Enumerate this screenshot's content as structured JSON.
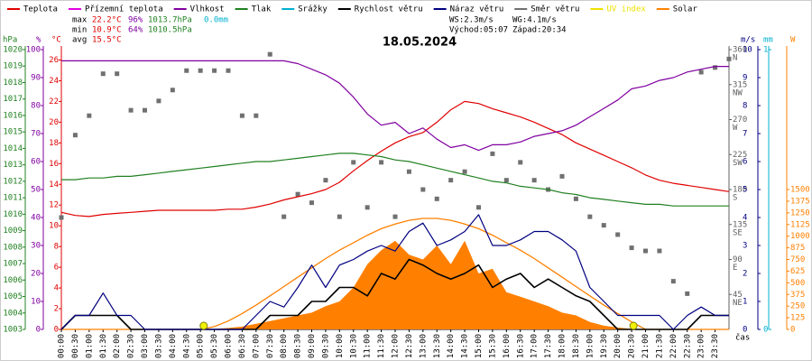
{
  "chart_data": {
    "type": "line",
    "title": "18.05.2024",
    "x_label": "čas",
    "xlim": [
      0,
      24
    ],
    "xticks": [
      {
        "value": 0,
        "label": "00:00"
      },
      {
        "value": 0.5,
        "label": "00:30"
      },
      {
        "value": 1,
        "label": "01:00"
      },
      {
        "value": 1.5,
        "label": "01:30"
      },
      {
        "value": 2,
        "label": "02:00"
      },
      {
        "value": 2.5,
        "label": "02:30"
      },
      {
        "value": 3,
        "label": "03:00"
      },
      {
        "value": 3.5,
        "label": "03:30"
      },
      {
        "value": 4,
        "label": "04:00"
      },
      {
        "value": 4.5,
        "label": "04:30"
      },
      {
        "value": 5,
        "label": "05:00"
      },
      {
        "value": 5.5,
        "label": "05:30"
      },
      {
        "value": 6,
        "label": "06:00"
      },
      {
        "value": 6.5,
        "label": "06:30"
      },
      {
        "value": 7,
        "label": "07:00"
      },
      {
        "value": 7.5,
        "label": "07:30"
      },
      {
        "value": 8,
        "label": "08:00"
      },
      {
        "value": 8.5,
        "label": "08:30"
      },
      {
        "value": 9,
        "label": "09:00"
      },
      {
        "value": 9.5,
        "label": "09:30"
      },
      {
        "value": 10,
        "label": "10:00"
      },
      {
        "value": 10.5,
        "label": "10:30"
      },
      {
        "value": 11,
        "label": "11:00"
      },
      {
        "value": 11.5,
        "label": "11:30"
      },
      {
        "value": 12,
        "label": "12:00"
      },
      {
        "value": 12.5,
        "label": "12:30"
      },
      {
        "value": 13,
        "label": "13:00"
      },
      {
        "value": 13.5,
        "label": "13:30"
      },
      {
        "value": 14,
        "label": "14:00"
      },
      {
        "value": 14.5,
        "label": "14:30"
      },
      {
        "value": 15,
        "label": "15:00"
      },
      {
        "value": 15.5,
        "label": "15:30"
      },
      {
        "value": 16,
        "label": "16:00"
      },
      {
        "value": 16.5,
        "label": "16:30"
      },
      {
        "value": 17,
        "label": "17:00"
      },
      {
        "value": 17.5,
        "label": "17:30"
      },
      {
        "value": 18,
        "label": "18:00"
      },
      {
        "value": 18.5,
        "label": "18:30"
      },
      {
        "value": 19,
        "label": "19:00"
      },
      {
        "value": 19.5,
        "label": "19:30"
      },
      {
        "value": 20,
        "label": "20:00"
      },
      {
        "value": 20.5,
        "label": "20:30"
      },
      {
        "value": 21,
        "label": "21:00"
      },
      {
        "value": 21.5,
        "label": "21:30"
      },
      {
        "value": 22,
        "label": "22:00"
      },
      {
        "value": 22.5,
        "label": "22:30"
      },
      {
        "value": 23,
        "label": "23:00"
      },
      {
        "value": 23.5,
        "label": "23:30"
      }
    ],
    "x": [
      0,
      0.5,
      1,
      1.5,
      2,
      2.5,
      3,
      3.5,
      4,
      4.5,
      5,
      5.5,
      6,
      6.5,
      7,
      7.5,
      8,
      8.5,
      9,
      9.5,
      10,
      10.5,
      11,
      11.5,
      12,
      12.5,
      13,
      13.5,
      14,
      14.5,
      15,
      15.5,
      16,
      16.5,
      17,
      17.5,
      18,
      18.5,
      19,
      19.5,
      20,
      20.5,
      21,
      21.5,
      22,
      22.5,
      23,
      23.5,
      24
    ],
    "axes": {
      "hPa": {
        "title": "hPa",
        "color": "#208020",
        "side": "left",
        "ylim": [
          1003,
          1020
        ],
        "yticks": [
          1003,
          1004,
          1005,
          1006,
          1007,
          1008,
          1009,
          1010,
          1011,
          1012,
          1013,
          1014,
          1015,
          1016,
          1017,
          1018,
          1019,
          1020
        ]
      },
      "pct": {
        "title": "%",
        "color": "#8000a0",
        "side": "left",
        "ylim": [
          0,
          100
        ],
        "yticks": [
          0,
          10,
          20,
          30,
          40,
          50,
          60,
          70,
          80,
          90,
          100
        ]
      },
      "degC": {
        "title": "°C",
        "color": "#e00000",
        "side": "left",
        "ylim": [
          0,
          27
        ],
        "yticks": [
          0,
          2,
          4,
          6,
          8,
          10,
          12,
          14,
          16,
          18,
          20,
          22,
          24,
          26
        ]
      },
      "dir": {
        "color": "#606060",
        "side": "right",
        "ylim": [
          0,
          360
        ],
        "yticks": [
          45,
          90,
          135,
          180,
          225,
          270,
          315,
          360
        ],
        "tick_names": [
          "NE",
          "E",
          "SE",
          "S",
          "SW",
          "W",
          "NW",
          "N"
        ]
      },
      "ms": {
        "title": "m/s",
        "color": "#000080",
        "side": "right",
        "ylim": [
          0,
          10
        ],
        "yticks": [
          0,
          1,
          2,
          3,
          4,
          5,
          6,
          7,
          8,
          9,
          10
        ]
      },
      "mm": {
        "title": "mm",
        "color": "#00b0d0",
        "side": "right",
        "ylim": [
          0,
          1
        ],
        "yticks": [
          0,
          1
        ]
      },
      "W": {
        "title": "W",
        "color": "#ff8000",
        "side": "right",
        "ylim": [
          0,
          3000
        ],
        "yticks": [
          0,
          125,
          250,
          375,
          500,
          625,
          750,
          875,
          1000,
          1125,
          1250,
          1375,
          1500
        ]
      }
    },
    "series": [
      {
        "name": "Teplota",
        "color": "#e00000",
        "axis": "degC",
        "kind": "line",
        "values": [
          11.3,
          11.0,
          10.9,
          11.1,
          11.2,
          11.3,
          11.4,
          11.5,
          11.5,
          11.5,
          11.5,
          11.5,
          11.6,
          11.6,
          11.8,
          12.1,
          12.5,
          12.8,
          13.1,
          13.5,
          14.2,
          15.3,
          16.3,
          17.2,
          18.0,
          18.6,
          19.0,
          20.0,
          21.2,
          22.0,
          21.8,
          21.3,
          20.9,
          20.5,
          20.0,
          19.4,
          18.8,
          18.0,
          17.4,
          16.8,
          16.2,
          15.6,
          14.9,
          14.4,
          14.1,
          13.9,
          13.7,
          13.5,
          13.3
        ]
      },
      {
        "name": "Přízemní teplota",
        "color": "#e000e0"
      },
      {
        "name": "Vlhkost",
        "color": "#8000a0",
        "axis": "pct",
        "kind": "line",
        "values": [
          96,
          96,
          96,
          96,
          96,
          96,
          96,
          96,
          96,
          96,
          96,
          96,
          96,
          96,
          96,
          96,
          96,
          95,
          93,
          91,
          88,
          83,
          77,
          73,
          74,
          70,
          72,
          68,
          65,
          66,
          64,
          66,
          66,
          67,
          69,
          70,
          71,
          73,
          76,
          79,
          82,
          86,
          87,
          89,
          90,
          92,
          93,
          94,
          94
        ]
      },
      {
        "name": "Tlak",
        "color": "#208020",
        "axis": "hPa",
        "kind": "line",
        "values": [
          1012.1,
          1012.1,
          1012.2,
          1012.2,
          1012.3,
          1012.3,
          1012.4,
          1012.5,
          1012.6,
          1012.7,
          1012.8,
          1012.9,
          1013.0,
          1013.1,
          1013.2,
          1013.2,
          1013.3,
          1013.4,
          1013.5,
          1013.6,
          1013.7,
          1013.7,
          1013.6,
          1013.5,
          1013.3,
          1013.2,
          1013.0,
          1012.8,
          1012.6,
          1012.4,
          1012.2,
          1012.0,
          1011.9,
          1011.7,
          1011.6,
          1011.5,
          1011.3,
          1011.2,
          1011.0,
          1010.9,
          1010.8,
          1010.7,
          1010.6,
          1010.6,
          1010.5,
          1010.5,
          1010.5,
          1010.5,
          1010.5
        ]
      },
      {
        "name": "Srážky",
        "color": "#00b0d0"
      },
      {
        "name": "Rychlost větru",
        "color": "#000000",
        "axis": "ms",
        "kind": "line",
        "width": 1.6,
        "values": [
          0,
          0.5,
          0.5,
          0.5,
          0.5,
          0,
          0,
          0,
          0,
          0,
          0,
          0,
          0,
          0,
          0,
          0.5,
          0.5,
          0.5,
          1.0,
          1.0,
          1.5,
          1.5,
          1.2,
          2.0,
          1.8,
          2.5,
          2.3,
          2.0,
          1.8,
          2.0,
          2.3,
          1.5,
          1.8,
          2.0,
          1.5,
          1.8,
          1.5,
          1.2,
          1.0,
          0.5,
          0,
          0,
          0,
          0,
          0,
          0,
          0.5,
          0.5,
          0.5
        ]
      },
      {
        "name": "Náraz větru",
        "color": "#000080",
        "axis": "ms",
        "kind": "line",
        "values": [
          0,
          0.5,
          0.5,
          1.3,
          0.5,
          0.5,
          0,
          0,
          0,
          0,
          0,
          0,
          0,
          0,
          0.5,
          1.0,
          0.8,
          1.5,
          2.3,
          1.5,
          2.3,
          2.5,
          2.8,
          3.0,
          2.8,
          3.5,
          3.8,
          3.0,
          3.2,
          3.5,
          4.1,
          3.0,
          3.0,
          3.2,
          3.5,
          3.5,
          3.2,
          2.8,
          1.5,
          1.0,
          0.5,
          0.5,
          0.5,
          0.5,
          0,
          0.5,
          0.8,
          0.5,
          0.5
        ]
      },
      {
        "name": "Směr větru",
        "color": "#707070",
        "axis": "dir",
        "kind": "scatter",
        "values": [
          144,
          250,
          275,
          329,
          329,
          282,
          282,
          294,
          308,
          333,
          333,
          333,
          333,
          275,
          275,
          354,
          145,
          174,
          163,
          192,
          145,
          215,
          157,
          215,
          145,
          203,
          180,
          168,
          192,
          203,
          157,
          226,
          192,
          215,
          192,
          180,
          197,
          168,
          145,
          134,
          122,
          105,
          101,
          101,
          62,
          46,
          331,
          337,
          348
        ]
      },
      {
        "name": "UV index",
        "color": "#f0e000"
      },
      {
        "name": "Solar",
        "color": "#ff8000",
        "axis": "W",
        "kind": "area",
        "values": [
          0,
          0,
          0,
          0,
          0,
          0,
          0,
          0,
          0,
          0,
          0,
          5,
          15,
          30,
          60,
          90,
          120,
          150,
          180,
          250,
          300,
          450,
          700,
          850,
          950,
          800,
          750,
          900,
          700,
          950,
          600,
          650,
          400,
          350,
          300,
          250,
          180,
          150,
          80,
          40,
          20,
          5,
          0,
          0,
          0,
          0,
          0,
          0,
          0
        ],
        "max_values": [
          0,
          0,
          0,
          0,
          0,
          0,
          0,
          0,
          0,
          0,
          0,
          30,
          90,
          170,
          260,
          360,
          460,
          560,
          660,
          760,
          850,
          930,
          1010,
          1080,
          1130,
          1170,
          1190,
          1190,
          1170,
          1130,
          1080,
          1010,
          930,
          850,
          760,
          660,
          560,
          460,
          360,
          260,
          170,
          80,
          0,
          0,
          0,
          0,
          0,
          0,
          0
        ]
      }
    ],
    "sun_markers": [
      5.117,
      20.567
    ],
    "stats": [
      {
        "label": "max",
        "values": [
          "22.2°C",
          "96%",
          "1013.7hPa",
          "0.0mm"
        ]
      },
      {
        "label": "min",
        "values": [
          "10.9°C",
          "64%",
          "1010.5hPa"
        ]
      },
      {
        "label": "avg",
        "values": [
          "15.5°C"
        ]
      }
    ],
    "wind_info": [
      "WS:2.3m/s",
      "WG:4.1m/s"
    ],
    "sun_info": [
      "Východ:05:07",
      "Západ:20:34"
    ]
  }
}
